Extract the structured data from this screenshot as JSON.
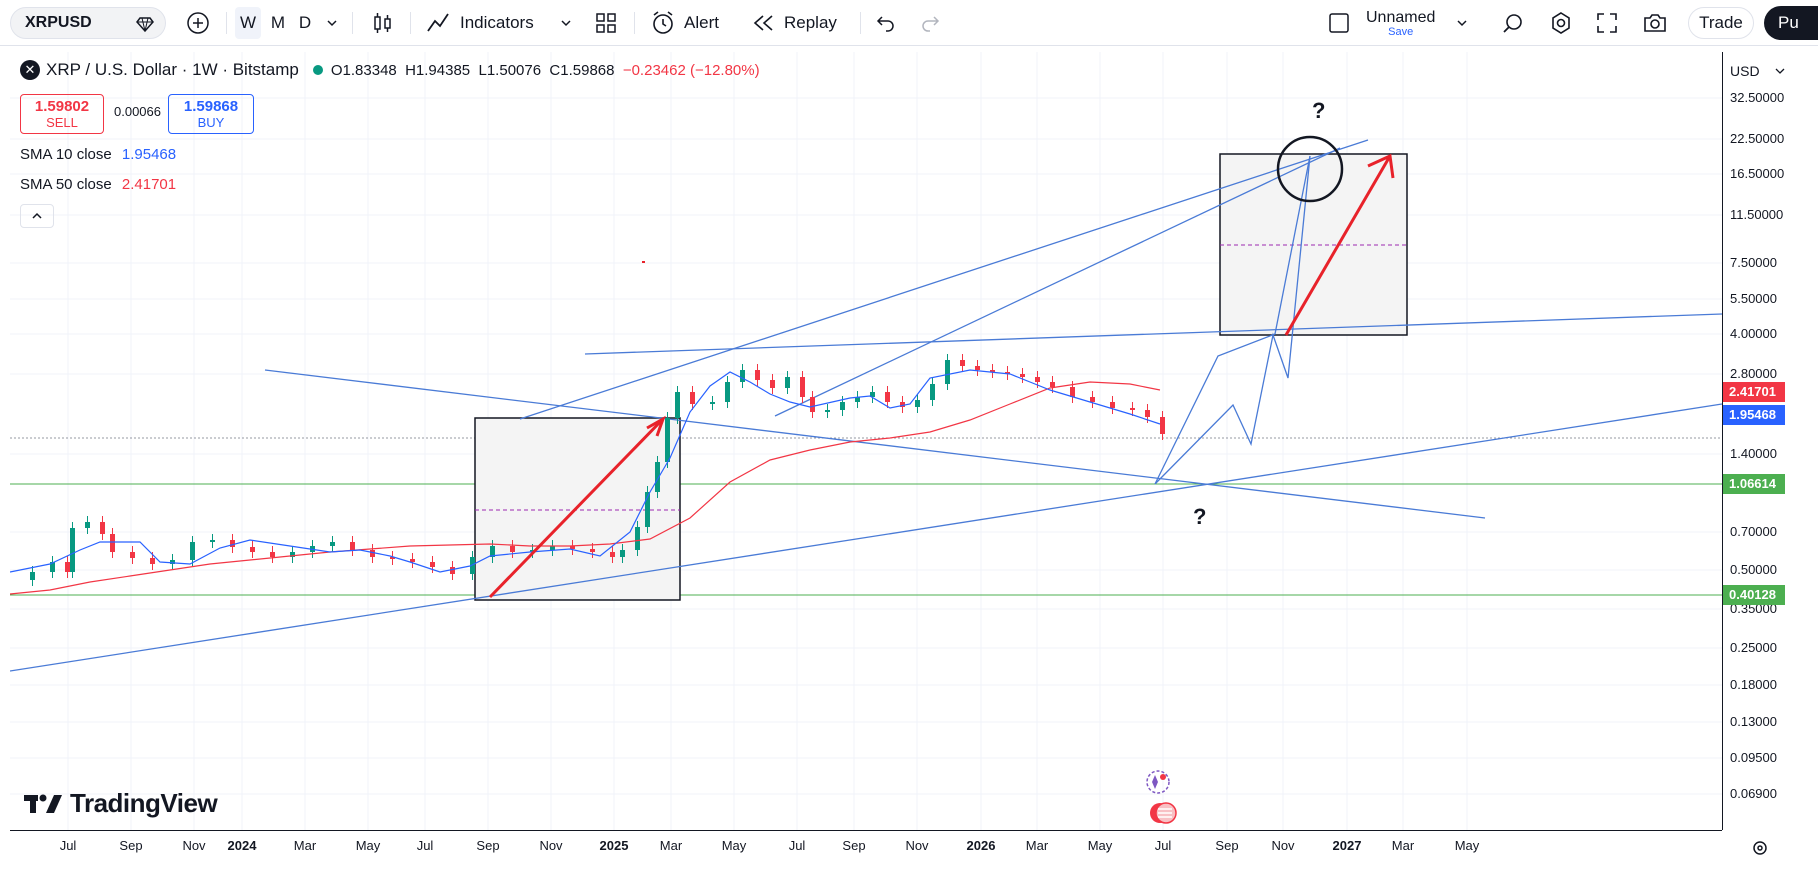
{
  "toolbar": {
    "symbol": "XRPUSD",
    "timeframes": [
      "W",
      "M",
      "D"
    ],
    "indicators_label": "Indicators",
    "alert_label": "Alert",
    "replay_label": "Replay",
    "layout_name": "Unnamed",
    "layout_save": "Save",
    "trade_label": "Trade",
    "publish_label": "Pu"
  },
  "legend": {
    "pair": "XRP / U.S. Dollar · 1W · Bitstamp",
    "open": "O1.83348",
    "high": "H1.94385",
    "low": "L1.50076",
    "close": "C1.59868",
    "change": "−0.23462 (−12.80%)",
    "sell_price": "1.59802",
    "sell_label": "SELL",
    "spread": "0.00066",
    "buy_price": "1.59868",
    "buy_label": "BUY",
    "sma10_label": "SMA 10 close",
    "sma10_value": "1.95468",
    "sma50_label": "SMA 50 close",
    "sma50_value": "2.41701"
  },
  "price_axis": {
    "currency": "USD",
    "ticks": [
      "32.50000",
      "22.50000",
      "16.50000",
      "11.50000",
      "7.50000",
      "5.50000",
      "4.00000",
      "2.80000",
      "1.40000",
      "0.70000",
      "0.50000",
      "0.35000",
      "0.25000",
      "0.18000",
      "0.13000",
      "0.09500",
      "0.06900"
    ],
    "tags": [
      {
        "label": "2.41701",
        "color": "#f23645"
      },
      {
        "label": "1.95468",
        "color": "#2962ff"
      },
      {
        "label": "1.06614",
        "color": "#4caf50"
      },
      {
        "label": "0.40128",
        "color": "#4caf50"
      }
    ]
  },
  "time_axis": {
    "labels": [
      "Jul",
      "Sep",
      "Nov",
      "2024",
      "Mar",
      "May",
      "Jul",
      "Sep",
      "Nov",
      "2025",
      "Mar",
      "May",
      "Jul",
      "Sep",
      "Nov",
      "2026",
      "Mar",
      "May",
      "Jul",
      "Sep",
      "Nov",
      "2027",
      "Mar",
      "May"
    ],
    "bold": [
      "2024",
      "2025",
      "2026",
      "2027"
    ]
  },
  "annotations": {
    "question_mark": "?"
  },
  "brand": {
    "name": "TradingView"
  },
  "colors": {
    "up": "#089981",
    "down": "#f23645",
    "sma10": "#2962ff",
    "sma50": "#f23645",
    "drawing": "#4a7bd6",
    "arrow": "#e8222a",
    "hline": "#4caf50"
  }
}
